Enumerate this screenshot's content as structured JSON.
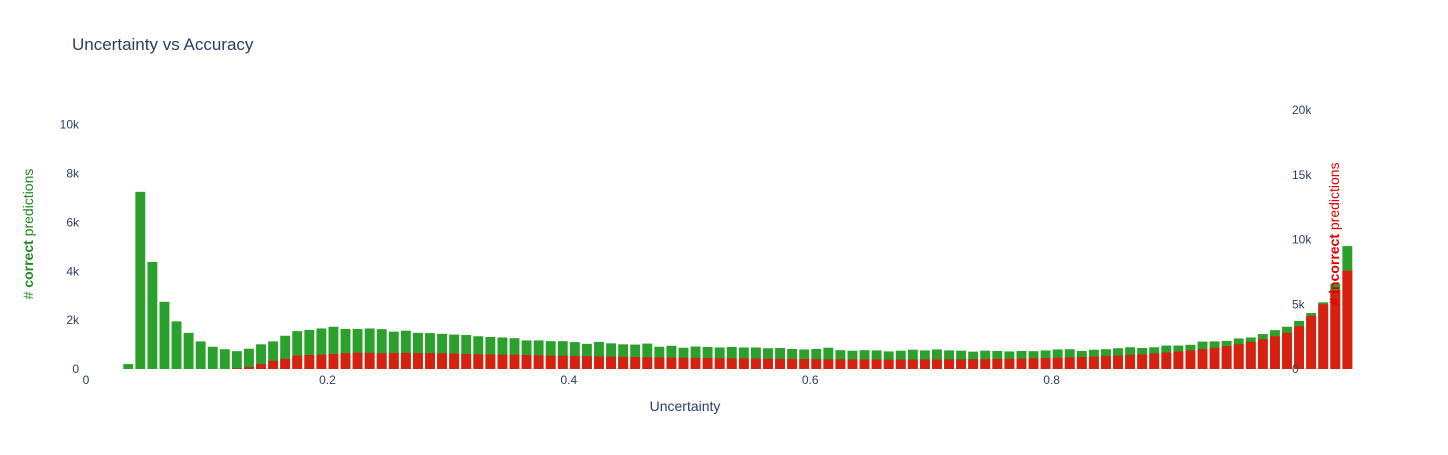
{
  "chart_data": {
    "type": "bar",
    "title": "Uncertainty vs Accuracy",
    "xlabel": "Uncertainty",
    "ylabel_left": {
      "prefix": "# ",
      "bold": "correct",
      "suffix": " predictions",
      "color": "#228b22"
    },
    "ylabel_right": {
      "prefix": "# ",
      "bold": "incorrect",
      "suffix": " predictions",
      "color": "#e00000"
    },
    "xlim": [
      0,
      0.995
    ],
    "ylim_left": [
      0,
      10600
    ],
    "ylim_right": [
      0,
      20000
    ],
    "x_ticks": [
      {
        "value": 0,
        "label": "0"
      },
      {
        "value": 0.2,
        "label": "0.2"
      },
      {
        "value": 0.4,
        "label": "0.4"
      },
      {
        "value": 0.6,
        "label": "0.6"
      },
      {
        "value": 0.8,
        "label": "0.8"
      }
    ],
    "y_ticks_left": [
      {
        "value": 0,
        "label": "0"
      },
      {
        "value": 2000,
        "label": "2k"
      },
      {
        "value": 4000,
        "label": "4k"
      },
      {
        "value": 6000,
        "label": "6k"
      },
      {
        "value": 8000,
        "label": "8k"
      },
      {
        "value": 10000,
        "label": "10k"
      }
    ],
    "y_ticks_right": [
      {
        "value": 0,
        "label": "0"
      },
      {
        "value": 5000,
        "label": "5k"
      },
      {
        "value": 10000,
        "label": "10k"
      },
      {
        "value": 15000,
        "label": "15k"
      },
      {
        "value": 20000,
        "label": "20k"
      }
    ],
    "grid": false,
    "bin_start": 0.0,
    "bin_width": 0.01,
    "series": [
      {
        "name": "correct",
        "axis": "left",
        "color": "#2ca02c",
        "values": [
          0,
          0,
          0,
          200,
          7250,
          4380,
          2750,
          1950,
          1480,
          1130,
          910,
          810,
          730,
          830,
          1010,
          1130,
          1360,
          1550,
          1600,
          1660,
          1730,
          1640,
          1640,
          1660,
          1630,
          1530,
          1570,
          1480,
          1470,
          1440,
          1410,
          1390,
          1340,
          1310,
          1290,
          1260,
          1170,
          1170,
          1140,
          1140,
          1100,
          1030,
          1110,
          1050,
          1010,
          1000,
          1040,
          910,
          950,
          870,
          920,
          900,
          880,
          900,
          880,
          880,
          850,
          860,
          820,
          800,
          820,
          870,
          770,
          750,
          770,
          760,
          720,
          750,
          790,
          760,
          800,
          760,
          750,
          710,
          750,
          740,
          720,
          740,
          730,
          760,
          800,
          810,
          740,
          790,
          810,
          850,
          890,
          860,
          890,
          960,
          960,
          990,
          1120,
          1130,
          1150,
          1250,
          1290,
          1430,
          1590,
          1730,
          1970,
          2290,
          2730,
          3480,
          5030
        ]
      },
      {
        "name": "incorrect",
        "axis": "right",
        "color": "#d62010",
        "values": [
          0,
          0,
          0,
          0,
          0,
          0,
          0,
          0,
          0,
          0,
          0,
          0,
          60,
          160,
          380,
          640,
          790,
          1030,
          1080,
          1110,
          1160,
          1220,
          1260,
          1250,
          1220,
          1230,
          1240,
          1230,
          1230,
          1210,
          1190,
          1160,
          1140,
          1130,
          1110,
          1100,
          1080,
          1060,
          1040,
          1020,
          1000,
          990,
          970,
          960,
          940,
          930,
          910,
          900,
          880,
          870,
          860,
          850,
          840,
          830,
          820,
          810,
          800,
          790,
          780,
          770,
          760,
          750,
          750,
          740,
          740,
          730,
          730,
          730,
          730,
          740,
          740,
          750,
          750,
          760,
          770,
          780,
          790,
          810,
          830,
          850,
          870,
          900,
          930,
          960,
          1000,
          1040,
          1090,
          1140,
          1200,
          1270,
          1350,
          1430,
          1530,
          1640,
          1770,
          1920,
          2100,
          2300,
          2530,
          2800,
          3300,
          4100,
          5000,
          6100,
          7600
        ]
      }
    ]
  }
}
